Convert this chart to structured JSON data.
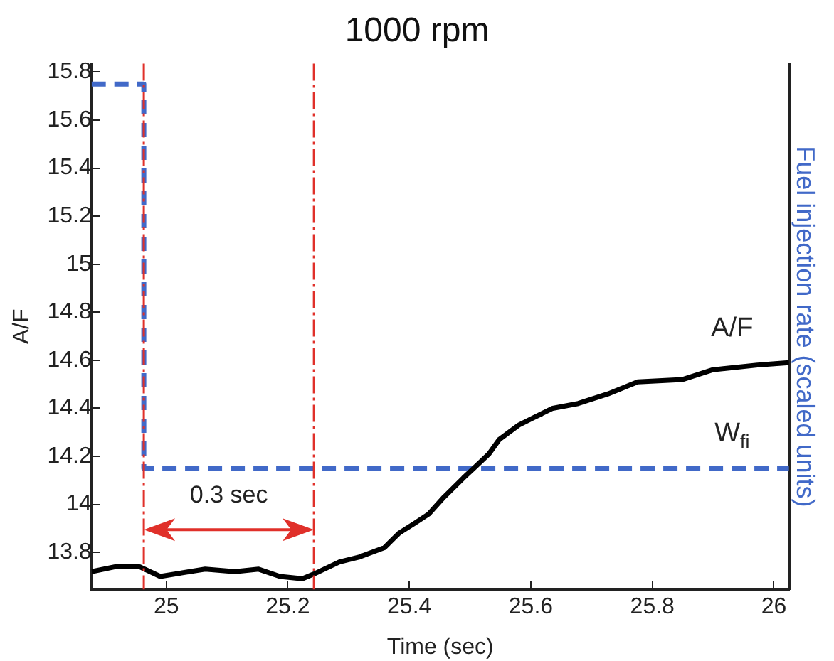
{
  "chart_data": {
    "type": "line",
    "title": "1000 rpm",
    "xlabel": "Time (sec)",
    "ylabel": "A/F",
    "y2label": "Fuel injection rate (scaled units)",
    "xlim": [
      24.877,
      26.025
    ],
    "xticks": [
      25,
      25.2,
      25.4,
      25.6,
      25.8,
      26
    ],
    "ylim": [
      13.646,
      15.835
    ],
    "yticks": [
      13.8,
      14,
      14.2,
      14.4,
      14.6,
      14.8,
      15,
      15.2,
      15.4,
      15.6,
      15.8
    ],
    "grid": false,
    "marker": "none",
    "series": [
      {
        "type": "line",
        "name": "A/F",
        "color": "#000000",
        "line_style": "solid",
        "x": [
          24.877,
          24.916,
          24.956,
          24.99,
          25.064,
          25.113,
          25.152,
          25.187,
          25.224,
          25.243,
          25.285,
          25.317,
          25.359,
          25.383,
          25.408,
          25.432,
          25.457,
          25.489,
          25.506,
          25.531,
          25.548,
          25.58,
          25.604,
          25.636,
          25.678,
          25.727,
          25.776,
          25.85,
          25.899,
          25.973,
          26.025
        ],
        "values": [
          13.72,
          13.74,
          13.74,
          13.7,
          13.73,
          13.72,
          13.73,
          13.7,
          13.69,
          13.71,
          13.76,
          13.78,
          13.82,
          13.88,
          13.92,
          13.96,
          14.03,
          14.11,
          14.15,
          14.21,
          14.27,
          14.33,
          14.36,
          14.4,
          14.42,
          14.46,
          14.51,
          14.52,
          14.56,
          14.58,
          14.59
        ]
      },
      {
        "type": "step",
        "name": "W$_{fi}$",
        "color": "#4169c8",
        "line_style": "dashed",
        "x": [
          24.877,
          24.963,
          26.025
        ],
        "values": [
          15.75,
          14.15,
          14.15
        ]
      }
    ],
    "ref_lines": [
      {
        "axis": "x",
        "value": 24.963,
        "color": "#e0302a",
        "line_style": "dashed"
      },
      {
        "axis": "x",
        "value": 25.243,
        "color": "#e0302a",
        "line_style": "dashed"
      }
    ],
    "annotations": [
      "0.3 sec"
    ]
  }
}
